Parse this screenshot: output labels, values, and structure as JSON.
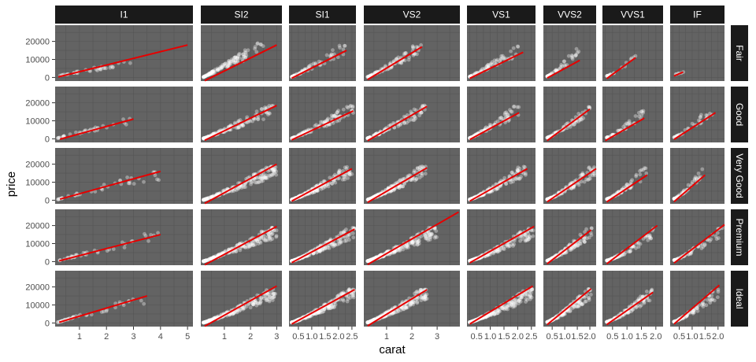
{
  "chart_data": {
    "type": "scatter",
    "title": "",
    "xlabel": "carat",
    "ylabel": "price",
    "facet_cols": [
      "I1",
      "SI2",
      "SI1",
      "VS2",
      "VS1",
      "VVS2",
      "VVS1",
      "IF"
    ],
    "facet_rows": [
      "Fair",
      "Good",
      "Very Good",
      "Premium",
      "Ideal"
    ],
    "scales": "free_x",
    "ylim": [
      -2000,
      29000
    ],
    "y_ticks": [
      0,
      10000,
      20000
    ],
    "x_ticks_per_column": [
      {
        "values": [
          1,
          2,
          3,
          4,
          5
        ],
        "labels": [
          "1",
          "2",
          "3",
          "4",
          "5"
        ]
      },
      {
        "values": [
          1,
          2,
          3
        ],
        "labels": [
          "1",
          "2",
          "3"
        ]
      },
      {
        "values": [
          0.5,
          1.0,
          1.5,
          2.0,
          2.5
        ],
        "labels": [
          "0.5",
          "1.0",
          "1.5",
          "2.0",
          "2.5"
        ]
      },
      {
        "values": [
          1,
          2,
          3
        ],
        "labels": [
          "1",
          "2",
          "3"
        ]
      },
      {
        "values": [
          0.5,
          1.0,
          1.5,
          2.0,
          2.5
        ],
        "labels": [
          "0.5",
          "1.0",
          "1.5",
          "2.0",
          "2.5"
        ]
      },
      {
        "values": [
          0.5,
          1.0,
          1.5,
          2.0
        ],
        "labels": [
          "0.5",
          "1.0",
          "1.5",
          "2.0"
        ]
      },
      {
        "values": [
          0.5,
          1.0,
          1.5,
          2.0
        ],
        "labels": [
          "0.5",
          "1.0",
          "1.5",
          "2.0"
        ]
      },
      {
        "values": [
          0.5,
          1.0,
          1.5,
          2.0
        ],
        "labels": [
          "0.5",
          "1.0",
          "1.5",
          "2.0"
        ]
      }
    ],
    "xlim_per_column": [
      [
        0.1,
        5.2
      ],
      [
        0.1,
        3.2
      ],
      [
        0.15,
        2.65
      ],
      [
        0.1,
        3.9
      ],
      [
        0.15,
        2.65
      ],
      [
        0.15,
        2.25
      ],
      [
        0.15,
        2.25
      ],
      [
        0.15,
        2.25
      ]
    ],
    "point_color": "#ffffff",
    "point_alpha": 0.35,
    "line_color": "#e60000",
    "panel_color": "#636363",
    "strip_color": "#1a1a1a",
    "strip_text_color": "#ffffff",
    "grid": true,
    "regression_lines": [
      [
        [
          0.22,
          300,
          5.0,
          18000
        ],
        [
          0.25,
          -1800,
          3.0,
          18000
        ],
        [
          0.25,
          -400,
          2.3,
          15000
        ],
        [
          0.25,
          -1200,
          2.4,
          17000
        ],
        [
          0.25,
          -500,
          2.2,
          14000
        ],
        [
          0.3,
          -300,
          1.6,
          9500
        ],
        [
          0.3,
          -600,
          1.3,
          11000
        ],
        [
          0.3,
          800,
          0.65,
          3000
        ]
      ],
      [
        [
          0.28,
          -200,
          3.0,
          11000
        ],
        [
          0.25,
          -800,
          3.0,
          18500
        ],
        [
          0.25,
          -600,
          2.55,
          15500
        ],
        [
          0.25,
          -1000,
          2.6,
          18000
        ],
        [
          0.25,
          -400,
          2.05,
          14500
        ],
        [
          0.3,
          -1000,
          2.0,
          16500
        ],
        [
          0.25,
          -1000,
          1.6,
          11500
        ],
        [
          0.3,
          -300,
          1.9,
          14500
        ]
      ],
      [
        [
          0.28,
          600,
          4.0,
          16000
        ],
        [
          0.25,
          -1800,
          3.0,
          20000
        ],
        [
          0.25,
          -500,
          2.5,
          17500
        ],
        [
          0.25,
          -1200,
          2.6,
          18000
        ],
        [
          0.25,
          -500,
          2.35,
          17500
        ],
        [
          0.3,
          -900,
          2.25,
          17500
        ],
        [
          0.3,
          -900,
          1.7,
          14000
        ],
        [
          0.3,
          -800,
          1.5,
          14000
        ]
      ],
      [
        [
          0.25,
          400,
          4.0,
          15000
        ],
        [
          0.25,
          -1800,
          3.0,
          19500
        ],
        [
          0.25,
          -600,
          2.6,
          18000
        ],
        [
          0.25,
          -1600,
          3.85,
          27500
        ],
        [
          0.25,
          -700,
          2.6,
          19500
        ],
        [
          0.3,
          -1200,
          2.05,
          17500
        ],
        [
          0.3,
          -1200,
          2.05,
          20000
        ],
        [
          0.3,
          -800,
          2.25,
          20500
        ]
      ],
      [
        [
          0.25,
          400,
          3.5,
          15000
        ],
        [
          0.25,
          -1800,
          3.0,
          20500
        ],
        [
          0.25,
          -600,
          2.6,
          18500
        ],
        [
          0.25,
          -1600,
          2.6,
          18500
        ],
        [
          0.25,
          -600,
          2.55,
          20500
        ],
        [
          0.3,
          -900,
          2.05,
          19000
        ],
        [
          0.3,
          -900,
          1.9,
          17000
        ],
        [
          0.3,
          -600,
          2.05,
          21000
        ]
      ]
    ],
    "scatter_clusters": [
      [
        [
          0.2,
          3.0,
          800,
          9000,
          0.95,
          35
        ],
        [
          0.2,
          2.5,
          200,
          19000,
          1.0,
          120
        ],
        [
          0.25,
          2.3,
          300,
          18000,
          1.05,
          70
        ],
        [
          0.25,
          2.4,
          300,
          18500,
          1.1,
          90
        ],
        [
          0.25,
          2.1,
          400,
          17500,
          1.05,
          70
        ],
        [
          0.3,
          1.6,
          600,
          17000,
          1.2,
          50
        ],
        [
          0.3,
          1.3,
          800,
          12500,
          1.3,
          20
        ],
        [
          0.3,
          0.7,
          1500,
          3000,
          1.0,
          6
        ]
      ],
      [
        [
          0.2,
          3.0,
          400,
          11500,
          0.95,
          35
        ],
        [
          0.2,
          3.0,
          200,
          18800,
          1.05,
          140
        ],
        [
          0.25,
          2.55,
          300,
          18500,
          1.1,
          120
        ],
        [
          0.25,
          2.55,
          300,
          18500,
          1.1,
          120
        ],
        [
          0.25,
          2.05,
          400,
          18000,
          1.1,
          100
        ],
        [
          0.3,
          2.0,
          600,
          18000,
          1.15,
          70
        ],
        [
          0.3,
          1.6,
          700,
          15500,
          1.2,
          45
        ],
        [
          0.3,
          1.8,
          800,
          18000,
          1.2,
          35
        ]
      ],
      [
        [
          0.2,
          4.0,
          400,
          16000,
          0.95,
          40
        ],
        [
          0.2,
          3.0,
          200,
          18800,
          1.1,
          200
        ],
        [
          0.25,
          2.5,
          300,
          18800,
          1.15,
          200
        ],
        [
          0.25,
          2.55,
          300,
          18800,
          1.15,
          200
        ],
        [
          0.25,
          2.3,
          400,
          18800,
          1.15,
          170
        ],
        [
          0.3,
          2.2,
          500,
          18800,
          1.2,
          120
        ],
        [
          0.3,
          1.7,
          600,
          18000,
          1.25,
          80
        ],
        [
          0.3,
          1.5,
          800,
          18500,
          1.25,
          50
        ]
      ],
      [
        [
          0.2,
          4.0,
          400,
          16000,
          0.95,
          40
        ],
        [
          0.2,
          3.0,
          200,
          18800,
          1.1,
          220
        ],
        [
          0.25,
          2.6,
          300,
          18800,
          1.15,
          220
        ],
        [
          0.25,
          3.0,
          300,
          18800,
          1.1,
          250
        ],
        [
          0.25,
          2.6,
          400,
          18800,
          1.15,
          180
        ],
        [
          0.3,
          2.1,
          500,
          18800,
          1.2,
          130
        ],
        [
          0.3,
          2.05,
          600,
          18800,
          1.25,
          90
        ],
        [
          0.3,
          2.2,
          800,
          18800,
          1.2,
          60
        ]
      ],
      [
        [
          0.2,
          3.5,
          400,
          15000,
          0.95,
          45
        ],
        [
          0.2,
          3.0,
          200,
          18800,
          1.1,
          220
        ],
        [
          0.25,
          2.6,
          300,
          18800,
          1.15,
          240
        ],
        [
          0.25,
          2.6,
          300,
          18800,
          1.15,
          250
        ],
        [
          0.25,
          2.55,
          400,
          18800,
          1.15,
          230
        ],
        [
          0.3,
          2.05,
          500,
          18800,
          1.2,
          170
        ],
        [
          0.3,
          1.9,
          600,
          18800,
          1.25,
          140
        ],
        [
          0.3,
          2.05,
          700,
          18800,
          1.2,
          90
        ]
      ]
    ]
  }
}
